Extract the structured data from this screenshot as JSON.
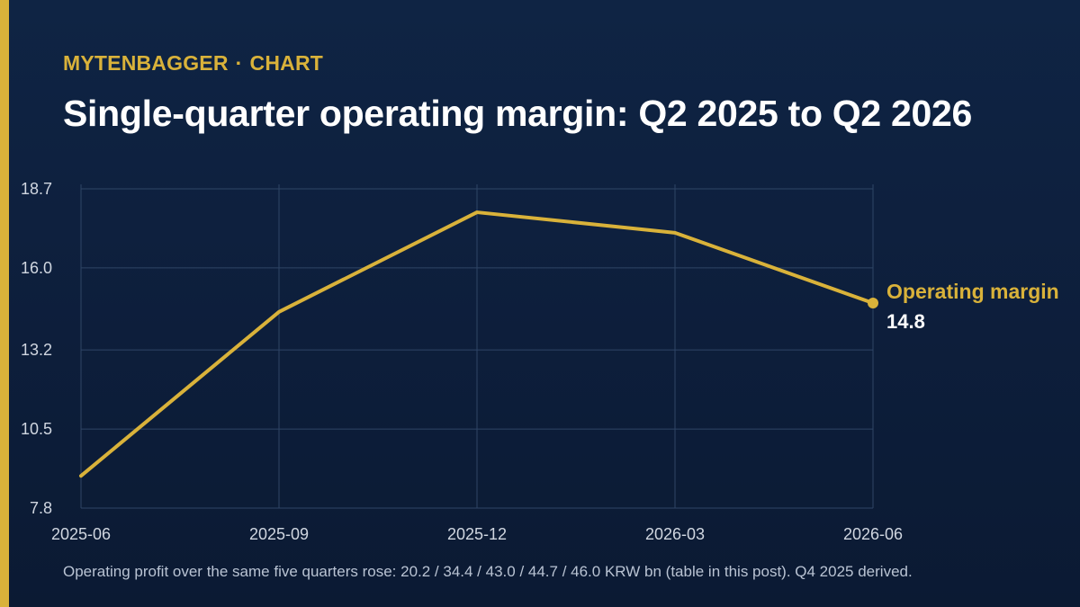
{
  "brand": {
    "name": "MYTENBAGGER",
    "separator": "·",
    "section": "CHART"
  },
  "colors": {
    "accent": "#d9b23a",
    "background": "#0e2140",
    "grid": "#2f4566",
    "axis_text": "#d0d6e0",
    "title_text": "#ffffff"
  },
  "footnote": "Operating profit over the same five quarters rose: 20.2 / 34.4 / 43.0 / 44.7 / 46.0 KRW bn (table in this post). Q4 2025 derived.",
  "chart_data": {
    "type": "line",
    "title": "Single-quarter operating margin: Q2 2025 to Q2 2026",
    "xlabel": "",
    "ylabel": "",
    "categories": [
      "2025-06",
      "2025-09",
      "2025-12",
      "2026-03",
      "2026-06"
    ],
    "series": [
      {
        "name": "Operating margin",
        "values": [
          8.9,
          14.5,
          17.9,
          17.2,
          14.8
        ],
        "last_label": "14.8"
      }
    ],
    "yticks": [
      "7.8",
      "10.5",
      "13.2",
      "16.0",
      "18.7"
    ],
    "ylim": [
      7.8,
      18.7
    ],
    "grid": true,
    "legend": "inline-end-label"
  }
}
